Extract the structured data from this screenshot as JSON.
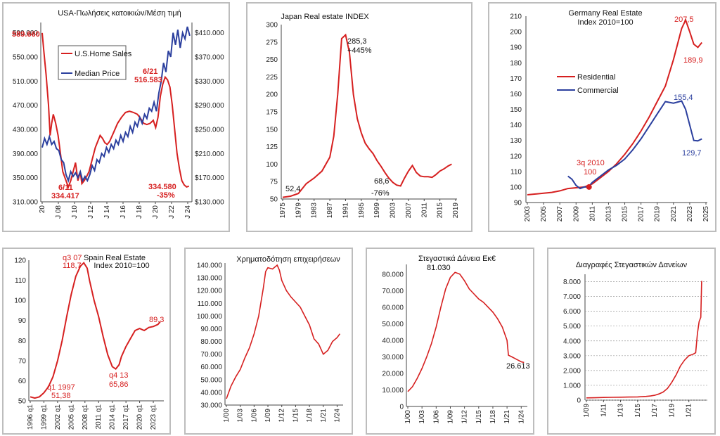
{
  "chart_data": [
    {
      "type": "line",
      "title": "USA-Πωλήσεις κατοικιών/Μέση τιμή",
      "x_ticks": [
        "20",
        "J 08",
        "J 10",
        "J 12",
        "J 14",
        "J 16",
        "J 18",
        "J 20",
        "J 22",
        "J 24"
      ],
      "y_left_ticks": [
        "590.000",
        "550.000",
        "510.000",
        "470.000",
        "430.000",
        "390.000",
        "350.000",
        "310.000"
      ],
      "y_left_range": [
        310000,
        600000
      ],
      "y_right_ticks": [
        "$410.000",
        "$370.000",
        "$330.000",
        "$290.000",
        "$250.000",
        "$210.000",
        "$170.000",
        "$130.000"
      ],
      "y_right_range": [
        130000,
        420000
      ],
      "legend_position": "top-left",
      "series": [
        {
          "name": "U.S.Home Sales",
          "axis": "left",
          "color": "#d62020",
          "x": [
            2006.0,
            2006.2,
            2006.5,
            2006.8,
            2007.0,
            2007.2,
            2007.4,
            2007.7,
            2008.0,
            2008.3,
            2008.6,
            2009.0,
            2009.3,
            2009.6,
            2009.9,
            2010.2,
            2010.5,
            2010.8,
            2011.0,
            2011.3,
            2011.6,
            2011.9,
            2012.3,
            2012.7,
            2013.0,
            2013.3,
            2013.6,
            2013.9,
            2014.2,
            2014.5,
            2015.0,
            2015.5,
            2016.0,
            2016.5,
            2017.0,
            2017.5,
            2018.0,
            2018.4,
            2018.8,
            2019.2,
            2019.6,
            2020.0,
            2020.3,
            2020.6,
            2020.9,
            2021.2,
            2021.5,
            2021.8,
            2022.1,
            2022.4,
            2022.7,
            2023.0,
            2023.3,
            2023.6,
            2023.9,
            2024.2,
            2024.5
          ],
          "values": [
            589660,
            560000,
            520000,
            470000,
            420000,
            440000,
            455000,
            440000,
            420000,
            390000,
            360000,
            345000,
            334417,
            345000,
            360000,
            375000,
            345000,
            360000,
            340000,
            345000,
            352000,
            360000,
            380000,
            400000,
            410000,
            420000,
            415000,
            408000,
            405000,
            410000,
            425000,
            440000,
            450000,
            458000,
            460000,
            458000,
            455000,
            448000,
            440000,
            438000,
            440000,
            445000,
            433000,
            450000,
            485000,
            505000,
            516583,
            512000,
            500000,
            470000,
            430000,
            390000,
            365000,
            345000,
            338000,
            334580,
            336000
          ]
        },
        {
          "name": "Median Price",
          "axis": "right",
          "color": "#2b3f9e",
          "x": [
            2006.0,
            2006.3,
            2006.6,
            2006.9,
            2007.2,
            2007.5,
            2007.8,
            2008.1,
            2008.4,
            2008.7,
            2009.0,
            2009.3,
            2009.6,
            2009.9,
            2010.2,
            2010.5,
            2010.8,
            2011.1,
            2011.4,
            2011.7,
            2012.0,
            2012.3,
            2012.6,
            2012.9,
            2013.2,
            2013.5,
            2013.8,
            2014.1,
            2014.4,
            2014.7,
            2015.0,
            2015.3,
            2015.6,
            2015.9,
            2016.2,
            2016.5,
            2016.8,
            2017.1,
            2017.4,
            2017.7,
            2018.0,
            2018.3,
            2018.6,
            2018.9,
            2019.2,
            2019.5,
            2019.8,
            2020.1,
            2020.4,
            2020.7,
            2021.0,
            2021.3,
            2021.6,
            2021.9,
            2022.2,
            2022.5,
            2022.8,
            2023.1,
            2023.4,
            2023.7,
            2024.0,
            2024.3,
            2024.6
          ],
          "values": [
            220000,
            235000,
            225000,
            238000,
            225000,
            230000,
            218000,
            215000,
            200000,
            195000,
            175000,
            165000,
            180000,
            172000,
            178000,
            170000,
            180000,
            165000,
            172000,
            165000,
            175000,
            190000,
            182000,
            200000,
            195000,
            210000,
            205000,
            220000,
            212000,
            225000,
            218000,
            232000,
            225000,
            240000,
            230000,
            245000,
            238000,
            255000,
            245000,
            262000,
            255000,
            270000,
            260000,
            275000,
            268000,
            285000,
            280000,
            295000,
            280000,
            310000,
            330000,
            360000,
            345000,
            380000,
            370000,
            410000,
            390000,
            415000,
            385000,
            410000,
            400000,
            420000,
            405000
          ]
        }
      ],
      "annotations": [
        "589.660",
        "6/11",
        "334.417",
        "6/21",
        "516.583",
        "334.580",
        "-35%"
      ]
    },
    {
      "type": "line",
      "title": "Japan  Real estate INDEX",
      "x_ticks": [
        "1975",
        "1979",
        "1983",
        "1987",
        "1991",
        "1995",
        "1999",
        "2003",
        "2007",
        "2011",
        "2015",
        "2019"
      ],
      "y_ticks": [
        "300",
        "275",
        "250",
        "225",
        "200",
        "175",
        "150",
        "125",
        "100",
        "75",
        "50"
      ],
      "ylim": [
        50,
        300
      ],
      "xlim": [
        1975,
        2019
      ],
      "series": [
        {
          "color": "#d62020",
          "x": [
            1975,
            1977,
            1979,
            1981,
            1983,
            1985,
            1987,
            1988,
            1989,
            1990,
            1991,
            1992,
            1993,
            1994,
            1995,
            1996,
            1997,
            1998,
            1999,
            2000,
            2001,
            2002,
            2003,
            2004,
            2005,
            2006,
            2007,
            2008,
            2009,
            2010,
            2011,
            2012,
            2013,
            2014,
            2015,
            2016,
            2017,
            2018
          ],
          "values": [
            52.4,
            54,
            58,
            72,
            80,
            90,
            110,
            140,
            200,
            280,
            285.3,
            260,
            200,
            165,
            145,
            130,
            122,
            115,
            105,
            97,
            88,
            80,
            74,
            70,
            68.6,
            80,
            90,
            98,
            88,
            83,
            82,
            82,
            81,
            85,
            90,
            93,
            97,
            100
          ]
        }
      ],
      "annotations": [
        "285,3",
        "+445%",
        "52,4",
        "68,6",
        "-76%"
      ]
    },
    {
      "type": "line",
      "title": "Germany Real Estate",
      "subtitle": "Index  2010=100",
      "x_ticks": [
        "2003",
        "2005",
        "2007",
        "2009",
        "2011",
        "2013",
        "2015",
        "2017",
        "2019",
        "2021",
        "2023",
        "2025"
      ],
      "y_ticks": [
        "210",
        "200",
        "190",
        "180",
        "170",
        "160",
        "150",
        "140",
        "130",
        "120",
        "110",
        "100",
        "90"
      ],
      "ylim": [
        90,
        210
      ],
      "xlim": [
        2003,
        2025
      ],
      "legend_position": "middle-left",
      "series": [
        {
          "name": "Residential",
          "color": "#d62020",
          "x": [
            2003,
            2004,
            2005,
            2006,
            2007,
            2008,
            2009,
            2010,
            2011,
            2012,
            2013,
            2014,
            2015,
            2016,
            2017,
            2018,
            2019,
            2020,
            2021,
            2022,
            2022.5,
            2023,
            2023.5,
            2024,
            2024.5
          ],
          "values": [
            95,
            95.5,
            96,
            96.5,
            97.5,
            99,
            99.5,
            100,
            102,
            106,
            110,
            115,
            121,
            128,
            136,
            145,
            155,
            165,
            182,
            202,
            207.5,
            200,
            192,
            189.9,
            193
          ]
        },
        {
          "name": "Commercial",
          "color": "#2b3f9e",
          "x": [
            2008,
            2008.5,
            2009,
            2009.5,
            2010,
            2010.5,
            2011,
            2012,
            2013,
            2014,
            2015,
            2016,
            2017,
            2018,
            2019,
            2020,
            2021,
            2022,
            2022.5,
            2023,
            2023.5,
            2024,
            2024.5
          ],
          "values": [
            107,
            105,
            101,
            99,
            100,
            100,
            103,
            107,
            111,
            114,
            118,
            124,
            131,
            139,
            147,
            155,
            154,
            155.4,
            150,
            140,
            130,
            129.7,
            131
          ]
        }
      ],
      "annotations": [
        "207,5",
        "189,9",
        "155,4",
        "129,7",
        "3q 2010",
        "100"
      ]
    },
    {
      "type": "line",
      "title": "Spain Real Estate",
      "subtitle": "Index  2010=100",
      "x_ticks": [
        "1996 q1",
        "1999 q1",
        "2002 q1",
        "2005 q1",
        "2008 q1",
        "2011 q1",
        "2014 q1",
        "2017 q1",
        "2020 q1",
        "2023 q1"
      ],
      "y_ticks": [
        "120",
        "110",
        "100",
        "90",
        "80",
        "70",
        "60",
        "50"
      ],
      "ylim": [
        50,
        120
      ],
      "xlim": [
        1996,
        2025
      ],
      "series": [
        {
          "color": "#d62020",
          "x": [
            1996,
            1997,
            1998,
            1999,
            2000,
            2001,
            2002,
            2003,
            2004,
            2005,
            2006,
            2007,
            2007.75,
            2008.5,
            2009,
            2010,
            2011,
            2012,
            2013,
            2014,
            2014.75,
            2015.5,
            2016,
            2017,
            2018,
            2019,
            2020,
            2021,
            2022,
            2023,
            2024,
            2024.5
          ],
          "values": [
            52,
            51.38,
            52,
            54,
            57,
            62,
            70,
            80,
            92,
            103,
            112,
            117,
            118.7,
            116,
            110,
            100,
            92,
            82,
            73,
            67,
            65.86,
            68,
            72,
            77,
            81,
            85,
            86,
            85,
            86.5,
            87,
            88,
            89.3
          ]
        }
      ],
      "annotations": [
        "q3 07",
        "118,7",
        "q1 1997",
        "51,38",
        "q4 13",
        "65,86",
        "89,3"
      ]
    },
    {
      "type": "line",
      "title": "Χρηματοδότηση επιχειρήσεων",
      "x_ticks": [
        "1/00",
        "1/03",
        "1/06",
        "1/09",
        "1/12",
        "1/15",
        "1/18",
        "1/21",
        "1/24"
      ],
      "y_ticks": [
        "140.000",
        "130.000",
        "120.000",
        "110.000",
        "100.000",
        "90.000",
        "80.000",
        "70.000",
        "60.000",
        "50.000",
        "40.000",
        "30.000"
      ],
      "ylim": [
        30000,
        145000
      ],
      "xlim": [
        2000,
        2025
      ],
      "series": [
        {
          "color": "#d62020",
          "x": [
            2000,
            2001,
            2002,
            2003,
            2004,
            2005,
            2006,
            2007,
            2008,
            2008.5,
            2009,
            2010,
            2011,
            2011.5,
            2012,
            2013,
            2014,
            2015,
            2016,
            2017,
            2018,
            2019,
            2020,
            2021,
            2022,
            2023,
            2024,
            2024.6
          ],
          "values": [
            35000,
            45000,
            52000,
            58000,
            67000,
            75000,
            86000,
            100000,
            122000,
            135000,
            138000,
            137000,
            140000,
            136000,
            128000,
            120000,
            115000,
            111000,
            107000,
            100000,
            93000,
            82000,
            78000,
            70000,
            73000,
            80000,
            83000,
            86000
          ]
        }
      ]
    },
    {
      "type": "line",
      "title": "Στεγαστικά Δάνεια Εκ€",
      "x_ticks": [
        "1/00",
        "1/03",
        "1/06",
        "1/09",
        "1/12",
        "1/15",
        "1/18",
        "1/21",
        "1/24"
      ],
      "y_ticks": [
        "80.000",
        "70.000",
        "60.000",
        "50.000",
        "40.000",
        "30.000",
        "20.000",
        "10.000",
        "0"
      ],
      "ylim": [
        0,
        85000
      ],
      "xlim": [
        2000,
        2025
      ],
      "series": [
        {
          "color": "#d62020",
          "x": [
            2000,
            2001,
            2002,
            2003,
            2004,
            2005,
            2006,
            2007,
            2008,
            2009,
            2010,
            2011,
            2012,
            2013,
            2014,
            2015,
            2016,
            2017,
            2018,
            2019,
            2020,
            2021,
            2021.3,
            2022,
            2023,
            2024,
            2024.6
          ],
          "values": [
            9000,
            12000,
            17000,
            23000,
            30000,
            38000,
            48000,
            60000,
            71000,
            78000,
            81030,
            80000,
            76000,
            71000,
            68000,
            65000,
            63000,
            60000,
            57000,
            53000,
            48000,
            40000,
            31000,
            30000,
            28500,
            27000,
            26613
          ]
        }
      ],
      "annotations": [
        "81.030",
        "26.613"
      ]
    },
    {
      "type": "line",
      "title": "Διαγραφές Στεγαστικών Δανείων",
      "x_ticks": [
        "1/09",
        "1/11",
        "1/13",
        "1/15",
        "1/17",
        "1/19",
        "1/21"
      ],
      "y_ticks": [
        "8.000",
        "7.000",
        "6.000",
        "5.000",
        "4.000",
        "3.000",
        "2.000",
        "1.000",
        "0"
      ],
      "ylim": [
        0,
        8500
      ],
      "xlim": [
        2009,
        2023
      ],
      "series": [
        {
          "color": "#d62020",
          "x": [
            2009,
            2010,
            2011,
            2012,
            2013,
            2014,
            2015,
            2016,
            2016.5,
            2017,
            2017.5,
            2018,
            2018.5,
            2019,
            2019.5,
            2020,
            2020.5,
            2021,
            2021.5,
            2021.8,
            2022,
            2022.2,
            2022.4,
            2022.5
          ],
          "values": [
            150,
            160,
            180,
            190,
            200,
            210,
            220,
            250,
            280,
            330,
            420,
            550,
            800,
            1200,
            1700,
            2300,
            2700,
            3000,
            3100,
            3200,
            4500,
            5300,
            5600,
            8050
          ]
        }
      ]
    }
  ]
}
